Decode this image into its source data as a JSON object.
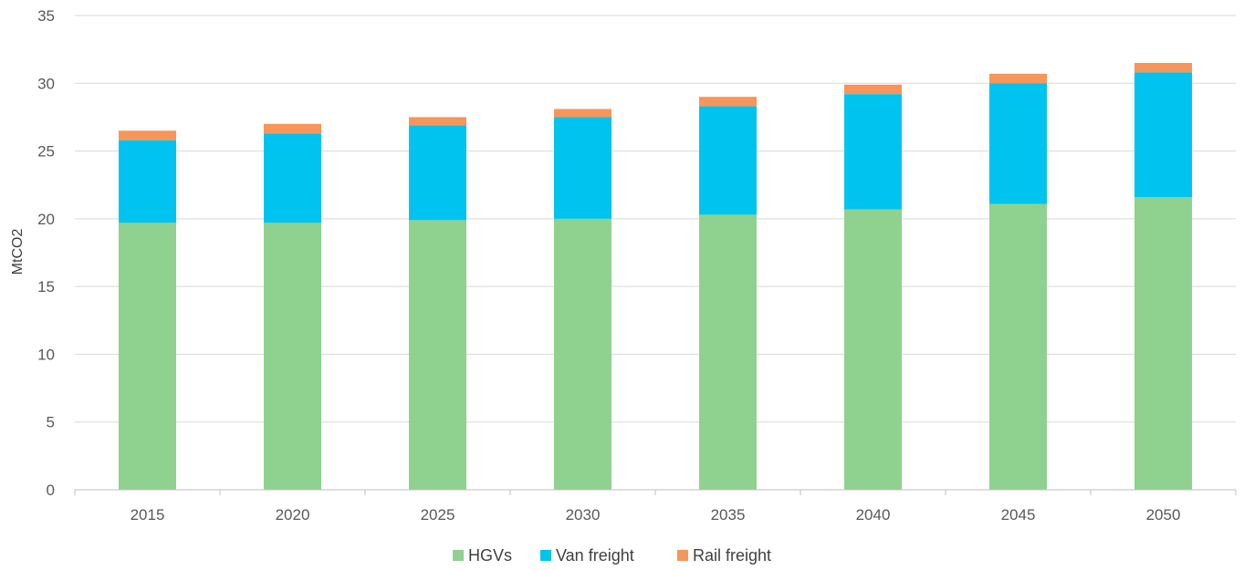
{
  "chart_data": {
    "type": "bar",
    "stacked": true,
    "ylabel": "MtCO2",
    "xlabel": "",
    "ylim": [
      0,
      35
    ],
    "yticks": [
      "0",
      "5",
      "10",
      "15",
      "20",
      "25",
      "30",
      "35"
    ],
    "grid": true,
    "legend_position": "bottom",
    "categories": [
      "2015",
      "2020",
      "2025",
      "2030",
      "2035",
      "2040",
      "2045",
      "2050"
    ],
    "series": [
      {
        "name": "HGVs",
        "color": "#8fd18f",
        "values": [
          19.7,
          19.7,
          19.9,
          20.0,
          20.3,
          20.7,
          21.1,
          21.6
        ]
      },
      {
        "name": "Van freight",
        "color": "#00c3ef",
        "values": [
          6.1,
          6.6,
          7.0,
          7.5,
          8.0,
          8.5,
          8.9,
          9.2
        ]
      },
      {
        "name": "Rail freight",
        "color": "#f7955b",
        "values": [
          0.7,
          0.7,
          0.6,
          0.6,
          0.7,
          0.7,
          0.7,
          0.7
        ]
      }
    ]
  }
}
